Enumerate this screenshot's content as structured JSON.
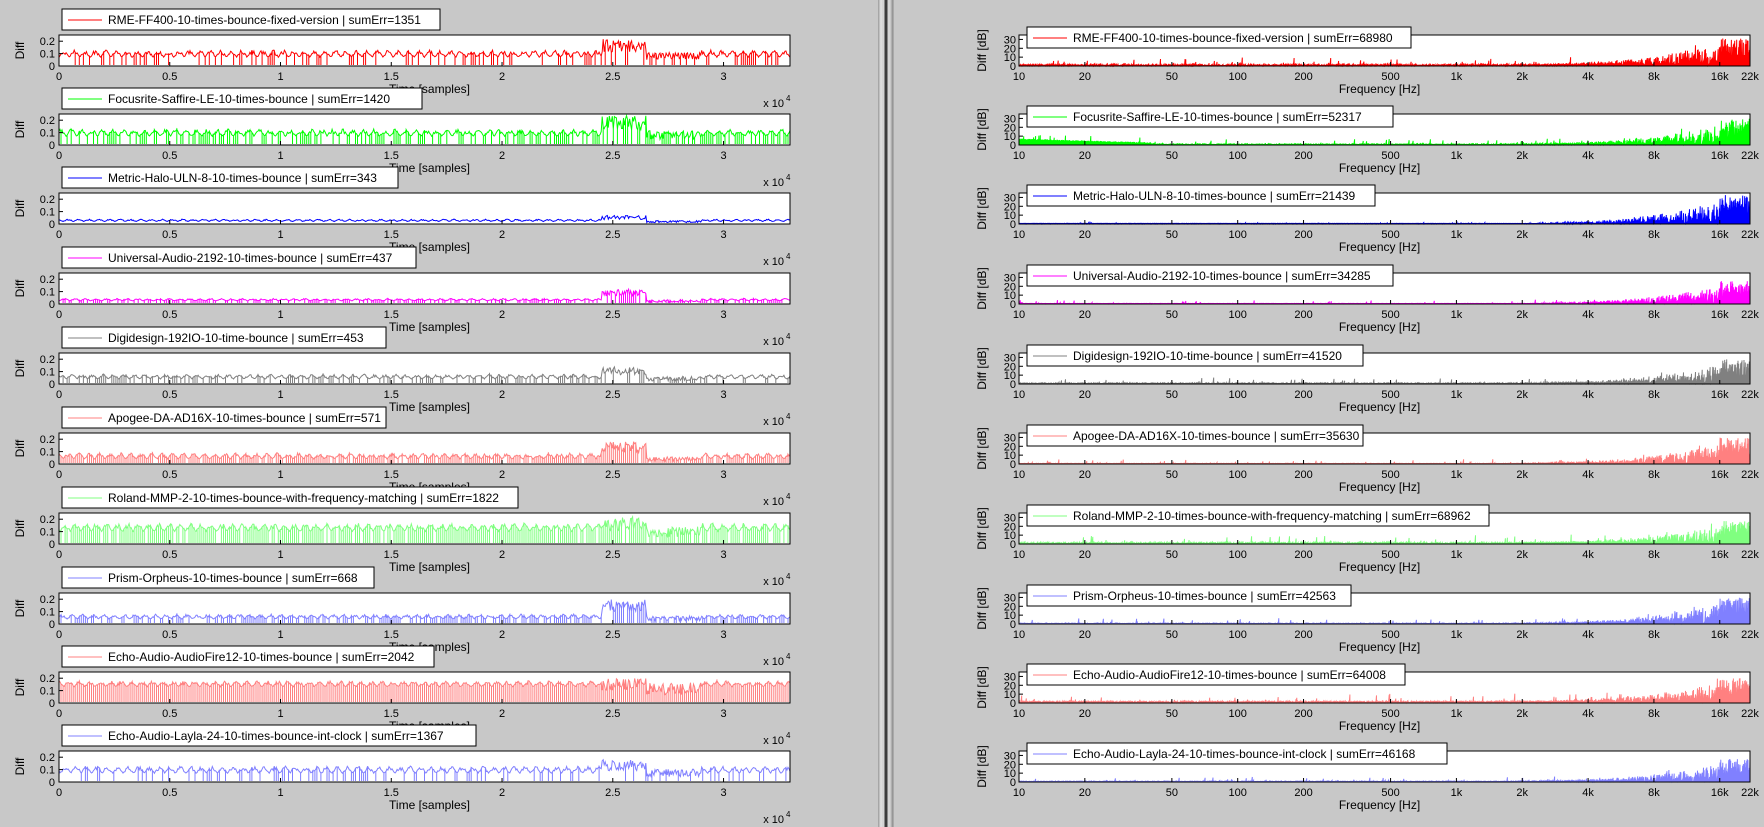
{
  "layout_labels": {
    "time_ylabel": "Diff",
    "time_xlabel": "Time [samples]",
    "time_exponent_base": "x 10",
    "time_exponent_power": "4",
    "freq_ylabel": "Diff [dB]",
    "freq_xlabel": "Frequency [Hz]"
  },
  "chart_data": [
    {
      "type": "line",
      "panel": "time",
      "x_scale": "linear",
      "xlim": [
        0,
        33000
      ],
      "ylim": [
        0,
        0.25
      ],
      "x_ticks": [
        0,
        5000,
        10000,
        15000,
        20000,
        25000,
        30000
      ],
      "x_tick_labels": [
        "0",
        "0.5",
        "1",
        "1.5",
        "2",
        "2.5",
        "3"
      ],
      "y_ticks": [
        0,
        0.1,
        0.2
      ],
      "y_tick_labels": [
        "0",
        "0.1",
        "0.2"
      ],
      "xlabel": "Time [samples]",
      "ylabel": "Diff",
      "series": [
        {
          "name": "RME-FF400-10-times-bounce-fixed-version | sumErr=1351",
          "color": "#ff0000",
          "level": 0.07,
          "amp": 0.06,
          "hi": 0.22,
          "burst": 0.65,
          "fill": 0.3
        },
        {
          "name": "Focusrite-Saffire-LE-10-times-bounce | sumErr=1420",
          "color": "#00ff00",
          "level": 0.07,
          "amp": 0.06,
          "hi": 0.24,
          "burst": 0.75,
          "fill": 0.5
        },
        {
          "name": "Metric-Halo-ULN-8-10-times-bounce | sumErr=343",
          "color": "#0000ff",
          "level": 0.02,
          "amp": 0.02,
          "hi": 0.07,
          "burst": 0.4,
          "fill": 0.0
        },
        {
          "name": "Universal-Audio-2192-10-times-bounce | sumErr=437",
          "color": "#ff00ff",
          "level": 0.025,
          "amp": 0.02,
          "hi": 0.12,
          "burst": 0.5,
          "fill": 0.6
        },
        {
          "name": "Digidesign-192IO-10-time-bounce | sumErr=453",
          "color": "#808080",
          "level": 0.04,
          "amp": 0.04,
          "hi": 0.14,
          "burst": 0.55,
          "fill": 0.4
        },
        {
          "name": "Apogee-DA-AD16X-10-times-bounce | sumErr=571",
          "color": "#ff8080",
          "level": 0.04,
          "amp": 0.05,
          "hi": 0.18,
          "burst": 0.35,
          "fill": 0.9
        },
        {
          "name": "Roland-MMP-2-10-times-bounce-with-frequency-matching | sumErr=1822",
          "color": "#80ff80",
          "level": 0.1,
          "amp": 0.07,
          "hi": 0.22,
          "burst": 0.6,
          "fill": 0.9
        },
        {
          "name": "Prism-Orpheus-10-times-bounce | sumErr=668",
          "color": "#8080ff",
          "level": 0.04,
          "amp": 0.04,
          "hi": 0.2,
          "burst": 0.6,
          "fill": 0.6
        },
        {
          "name": "Echo-Audio-AudioFire12-10-times-bounce | sumErr=2042",
          "color": "#ff8080",
          "level": 0.13,
          "amp": 0.05,
          "hi": 0.2,
          "burst": 0.7,
          "fill": 1.0
        },
        {
          "name": "Echo-Audio-Layla-24-10-times-bounce-int-clock | sumErr=1367",
          "color": "#8080ff",
          "level": 0.07,
          "amp": 0.06,
          "hi": 0.18,
          "burst": 0.55,
          "fill": 0.3
        }
      ]
    },
    {
      "type": "line",
      "panel": "frequency",
      "x_scale": "log",
      "xlim": [
        10,
        22000
      ],
      "ylim": [
        0,
        35
      ],
      "x_ticks": [
        10,
        20,
        50,
        100,
        200,
        500,
        1000,
        2000,
        4000,
        8000,
        16000,
        22000
      ],
      "x_tick_labels": [
        "10",
        "20",
        "50",
        "100",
        "200",
        "500",
        "1k",
        "2k",
        "4k",
        "8k",
        "16k",
        "22k"
      ],
      "y_ticks": [
        0,
        10,
        20,
        30
      ],
      "y_tick_labels": [
        "0",
        "10",
        "20",
        "30"
      ],
      "xlabel": "Frequency [Hz]",
      "ylabel": "Diff [dB]",
      "series": [
        {
          "name": "RME-FF400-10-times-bounce-fixed-version | sumErr=68980",
          "color": "#ff0000",
          "base": 1.5,
          "spike": 0.8,
          "rise": 32
        },
        {
          "name": "Focusrite-Saffire-LE-10-times-bounce | sumErr=52317",
          "color": "#00ff00",
          "base": 1.0,
          "spike": 0.6,
          "rise": 30
        },
        {
          "name": "Metric-Halo-ULN-8-10-times-bounce | sumErr=21439",
          "color": "#0000ff",
          "base": 0.3,
          "spike": 0.15,
          "rise": 33
        },
        {
          "name": "Universal-Audio-2192-10-times-bounce | sumErr=34285",
          "color": "#ff00ff",
          "base": 0.5,
          "spike": 0.4,
          "rise": 26
        },
        {
          "name": "Digidesign-192IO-10-time-bounce | sumErr=41520",
          "color": "#808080",
          "base": 1.0,
          "spike": 0.6,
          "rise": 28
        },
        {
          "name": "Apogee-DA-AD16X-10-times-bounce | sumErr=35630",
          "color": "#ff8080",
          "base": 0.6,
          "spike": 0.5,
          "rise": 30
        },
        {
          "name": "Roland-MMP-2-10-times-bounce-with-frequency-matching | sumErr=68962",
          "color": "#80ff80",
          "base": 1.5,
          "spike": 0.8,
          "rise": 26
        },
        {
          "name": "Prism-Orpheus-10-times-bounce | sumErr=42563",
          "color": "#8080ff",
          "base": 0.8,
          "spike": 0.6,
          "rise": 30
        },
        {
          "name": "Echo-Audio-AudioFire12-10-times-bounce | sumErr=64008",
          "color": "#ff8080",
          "base": 2.0,
          "spike": 0.8,
          "rise": 28
        },
        {
          "name": "Echo-Audio-Layla-24-10-times-bounce-int-clock | sumErr=46168",
          "color": "#8080ff",
          "base": 0.8,
          "spike": 0.5,
          "rise": 26
        }
      ]
    }
  ]
}
